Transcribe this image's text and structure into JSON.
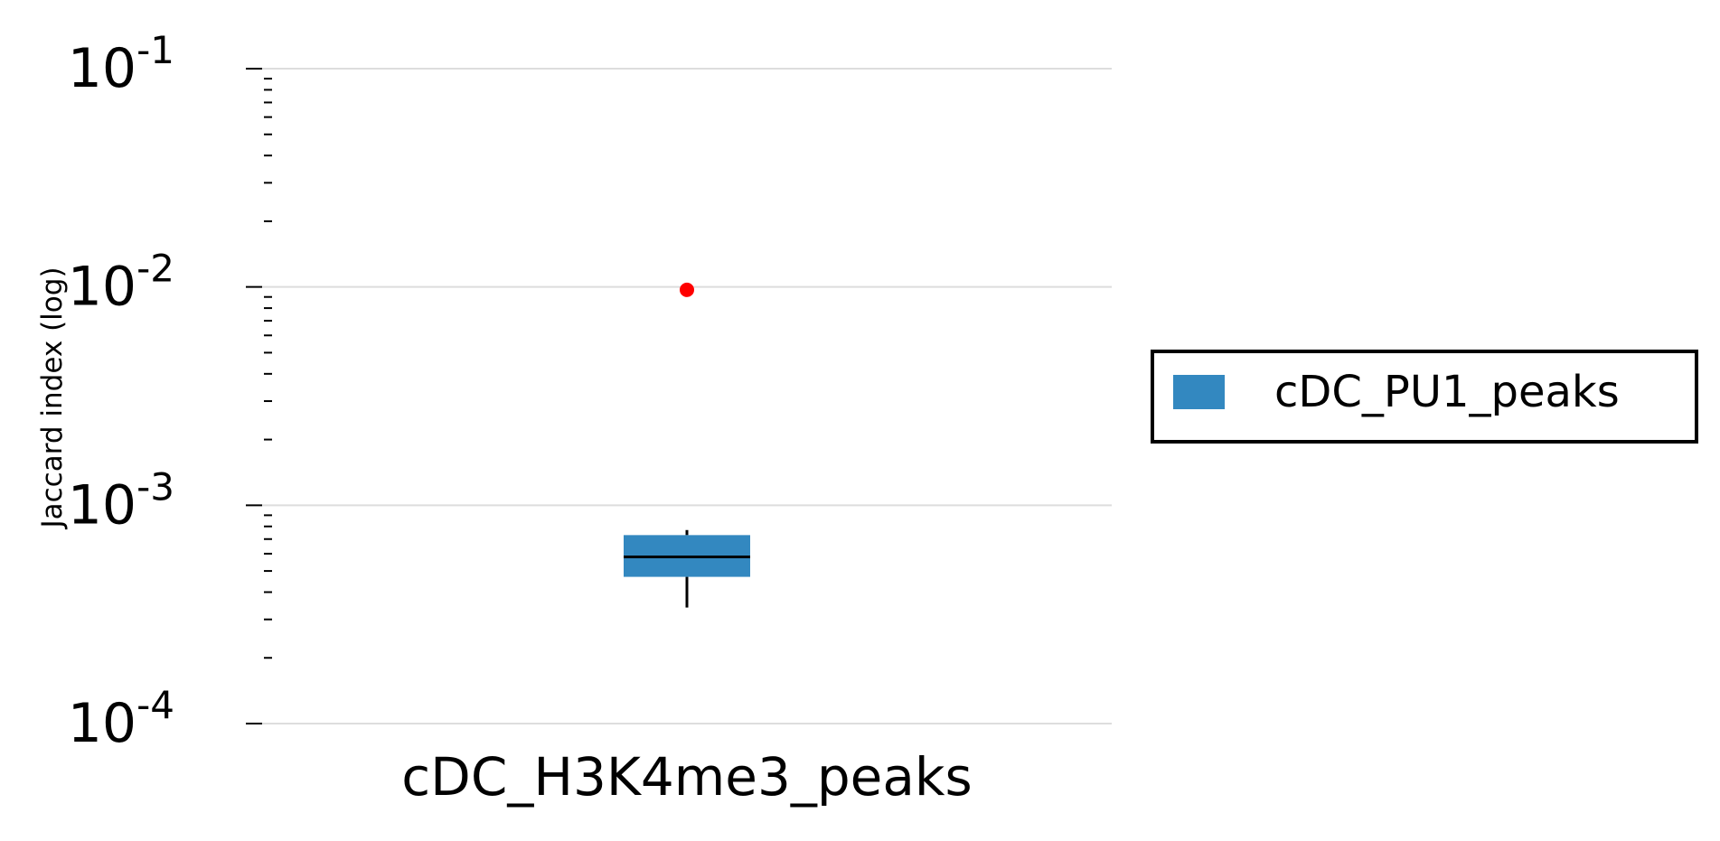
{
  "chart_data": {
    "type": "box",
    "ylabel": "Jaccard index (log)",
    "yscale": "log",
    "ylim": [
      0.0001,
      0.1
    ],
    "yticks": [
      {
        "value": 0.1,
        "base": "10",
        "exp": "-1"
      },
      {
        "value": 0.01,
        "base": "10",
        "exp": "-2"
      },
      {
        "value": 0.001,
        "base": "10",
        "exp": "-3"
      },
      {
        "value": 0.0001,
        "base": "10",
        "exp": "-4"
      }
    ],
    "grid": true,
    "categories": [
      "cDC_H3K4me3_peaks"
    ],
    "series": [
      {
        "name": "cDC_PU1_peaks",
        "color": "#3388c0",
        "boxes": [
          {
            "category": "cDC_H3K4me3_peaks",
            "whisker_low": 0.00034,
            "q1": 0.00047,
            "median": 0.00058,
            "q3": 0.00073,
            "whisker_high": 0.00077,
            "outliers": [
              0.0097
            ]
          }
        ]
      }
    ],
    "outlier_color": "#ff0000",
    "legend_position": "right"
  }
}
